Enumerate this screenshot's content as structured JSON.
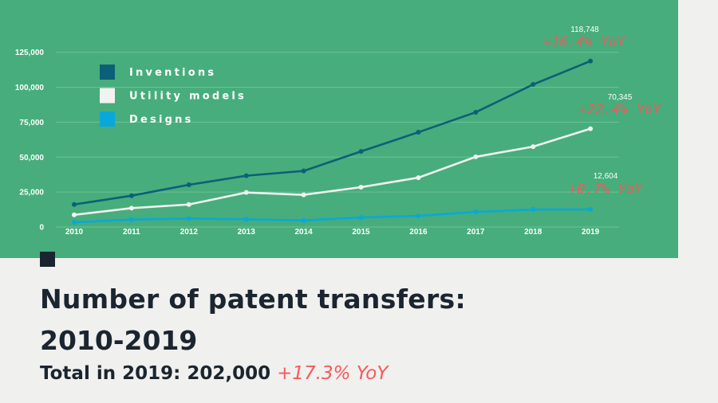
{
  "chart_data": {
    "type": "line",
    "title": "Number of patent transfers: 2010-2019",
    "x": [
      "2010",
      "2011",
      "2012",
      "2013",
      "2014",
      "2015",
      "2016",
      "2017",
      "2018",
      "2019"
    ],
    "yticks": [
      "0",
      "25,000",
      "50,000",
      "75,000",
      "100,000",
      "125,000"
    ],
    "ylim": [
      0,
      125000
    ],
    "grid": true,
    "legend_position": "top-left",
    "series": [
      {
        "name": "Inventions",
        "color": "#0b6078",
        "values": [
          16100,
          22400,
          30200,
          36700,
          40100,
          54100,
          67800,
          82100,
          102000,
          118748
        ]
      },
      {
        "name": "Utility models",
        "color": "#f2f2f0",
        "values": [
          8700,
          13500,
          16100,
          24700,
          23000,
          28500,
          35300,
          50200,
          57500,
          70345
        ]
      },
      {
        "name": "Designs",
        "color": "#08a9d9",
        "values": [
          3400,
          5300,
          6100,
          5500,
          4700,
          6800,
          8000,
          10800,
          12516,
          12604
        ]
      }
    ],
    "annotations": [
      {
        "series": "Inventions",
        "value_label": "118,748",
        "yoy": "+16.4% YoY"
      },
      {
        "series": "Utility models",
        "value_label": "70,345",
        "yoy": "+22.4% YoY"
      },
      {
        "series": "Designs",
        "value_label": "12,604",
        "yoy": "+0.7% YoY"
      }
    ]
  },
  "caption": {
    "line1": "Number of patent transfers:",
    "line2": "2010-2019",
    "total_label": "Total in 2019: 202,000",
    "total_yoy": "+17.3% YoY"
  }
}
